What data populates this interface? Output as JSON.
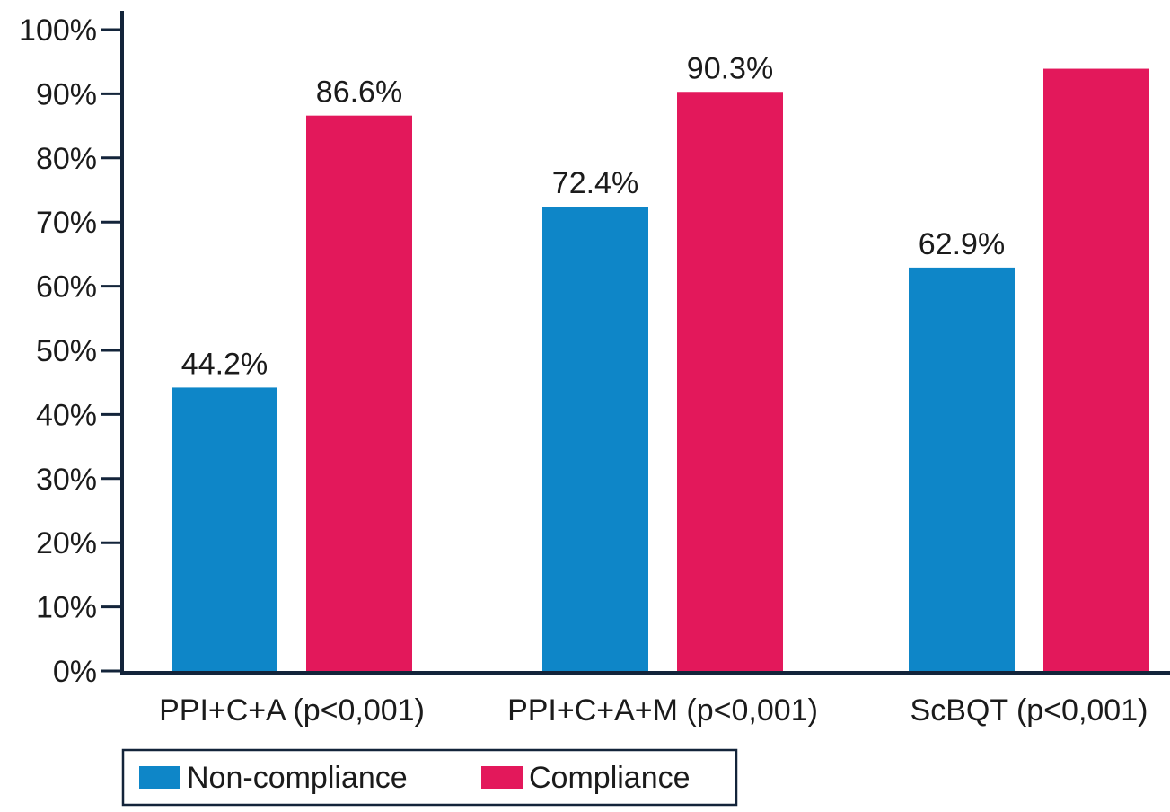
{
  "chart_data": {
    "type": "bar",
    "title": "",
    "xlabel": "",
    "ylabel": "",
    "ylim": [
      0,
      100
    ],
    "y_ticks": [
      "0%",
      "10%",
      "20%",
      "30%",
      "40%",
      "50%",
      "60%",
      "70%",
      "80%",
      "90%",
      "100%"
    ],
    "categories": [
      "PPI+C+A (p<0,001)",
      "PPI+C+A+M (p<0,001)",
      "ScBQT (p<0,001)"
    ],
    "series": [
      {
        "name": "Non-compliance",
        "color": "#0e86c8",
        "values": [
          44.2,
          72.4,
          62.9
        ],
        "labels": [
          "44.2%",
          "72.4%",
          "62.9%"
        ]
      },
      {
        "name": "Compliance",
        "color": "#e3185b",
        "values": [
          86.6,
          90.3,
          93.9
        ],
        "labels": [
          "86.6%",
          "90.3%",
          ""
        ]
      }
    ],
    "legend": {
      "position": "bottom-left"
    },
    "grid": false
  }
}
